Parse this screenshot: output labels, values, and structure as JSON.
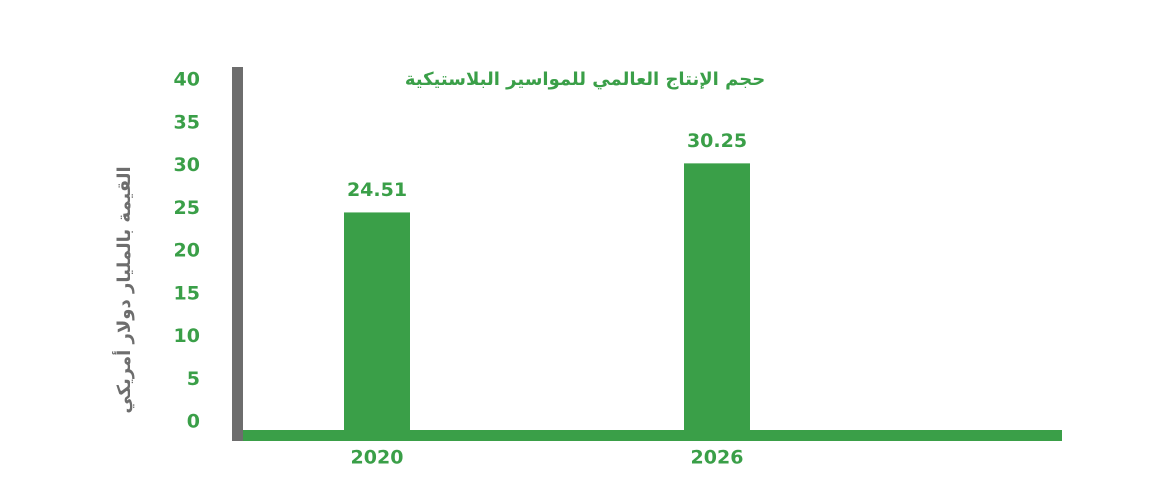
{
  "chart_data": {
    "type": "bar",
    "title": "حجم الإنتاج العالمي للمواسير البلاستيكية",
    "y_label": "القيمة بالمليار دولار أمريكي",
    "categories": [
      "2020",
      "2026"
    ],
    "values": [
      24.51,
      30.25
    ],
    "color": "#3a9f48",
    "ylim": [
      0,
      40
    ],
    "yticks": [
      0,
      5,
      10,
      15,
      20,
      25,
      30,
      35,
      40
    ],
    "grid": false
  }
}
